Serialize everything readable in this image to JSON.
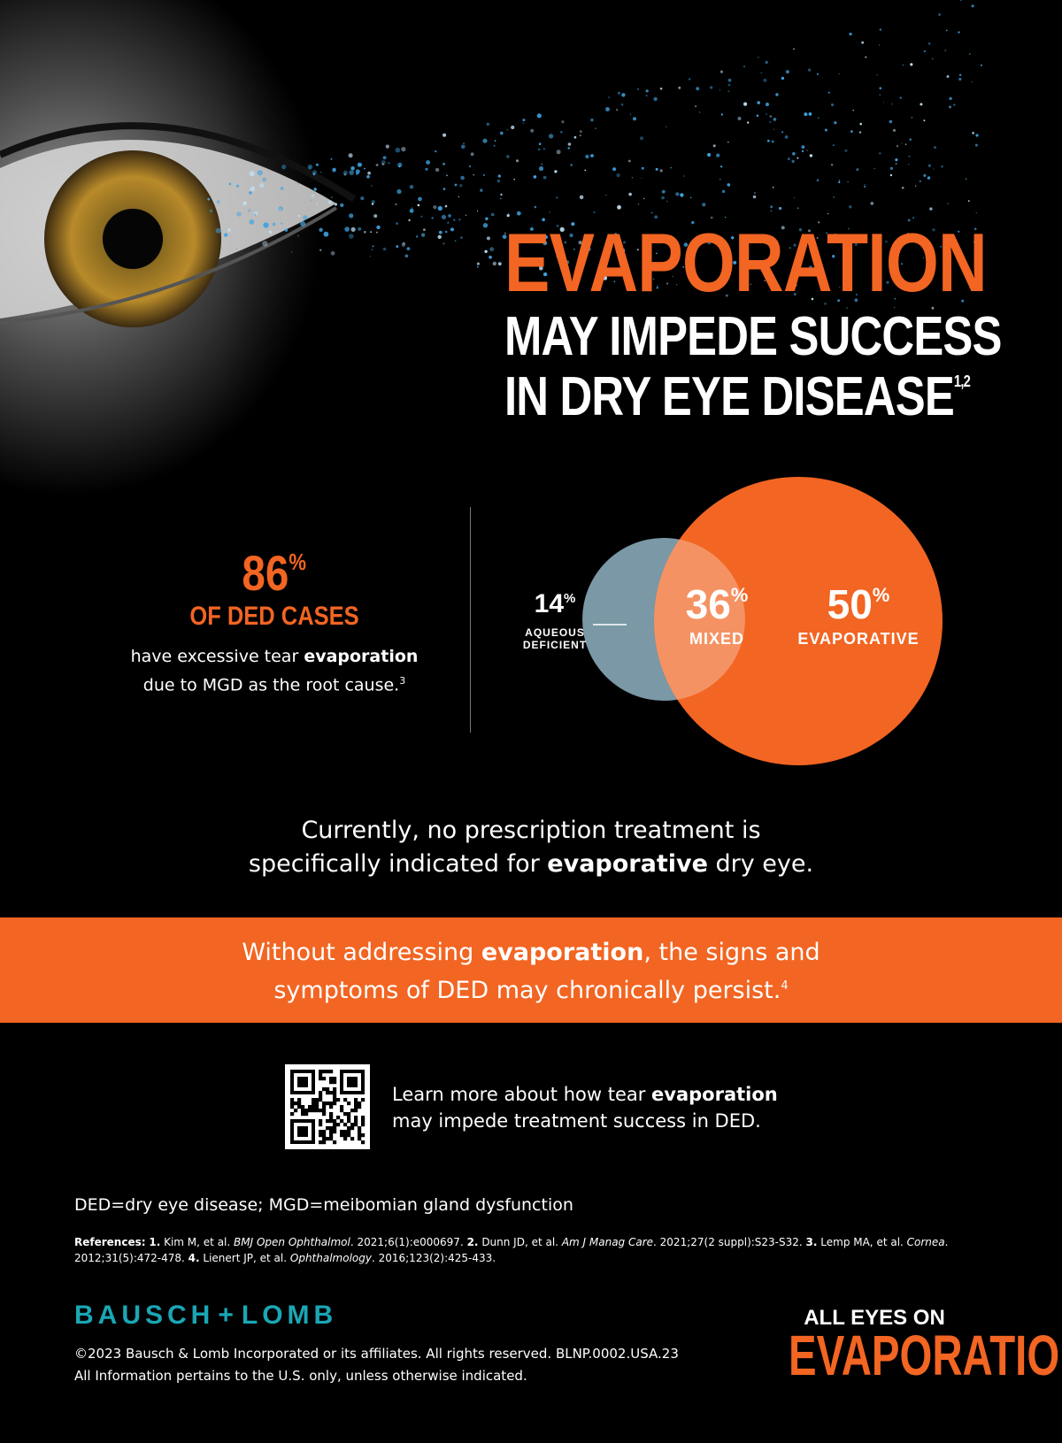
{
  "headline": {
    "title": "EVAPORATION",
    "line1": "MAY IMPEDE SUCCESS",
    "line2": "IN DRY EYE DISEASE",
    "line2_sup": "1,2"
  },
  "stat": {
    "value": "86",
    "unit": "%",
    "label": "OF DED CASES",
    "desc_pre": "have excessive tear ",
    "desc_bold": "evaporation",
    "desc_post": "due to MGD as the root cause.",
    "desc_sup": "3"
  },
  "venn": {
    "aqueous": {
      "value": "14",
      "unit": "%",
      "line1": "AQUEOUS",
      "line2": "DEFICIENT"
    },
    "mixed": {
      "value": "36",
      "unit": "%",
      "name": "MIXED"
    },
    "evaporative": {
      "value": "50",
      "unit": "%",
      "name": "EVAPORATIVE"
    },
    "colors": {
      "orange": "#f26522",
      "blue": "#7a98a6",
      "overlap": "#f5a27a"
    }
  },
  "statement": {
    "line1": "Currently, no prescription treatment is",
    "line2_pre": "specifically indicated for ",
    "line2_bold": "evaporative",
    "line2_post": " dry eye."
  },
  "band": {
    "line1_pre": "Without addressing ",
    "line1_bold": "evaporation",
    "line1_post": ", the signs and",
    "line2": "symptoms of DED may chronically persist.",
    "sup": "4",
    "color": "#f26522"
  },
  "learn": {
    "line1_pre": "Learn more about how tear ",
    "line1_bold": "evaporation",
    "line2": "may impede treatment success in DED.",
    "qr_icon": "qr-code-icon"
  },
  "abbrev": "DED=dry eye disease; MGD=meibomian gland dysfunction",
  "references": {
    "label": "References:",
    "r1_num": "1.",
    "r1_pre": " Kim M, et al. ",
    "r1_journal": "BMJ Open Ophthalmol",
    "r1_post": ". 2021;6(1):e000697. ",
    "r2_num": "2.",
    "r2_pre": " Dunn JD, et al. ",
    "r2_journal": "Am J Manag Care",
    "r2_post": ". 2021;27(2 suppl):S23-S32. ",
    "r3_num": "3.",
    "r3_pre": " Lemp MA, et al. ",
    "r3_journal": "Cornea",
    "r3_post": ". 2012;31(5):472-478. ",
    "r4_num": "4.",
    "r4_pre": " Lienert JP, et al. ",
    "r4_journal": "Ophthalmology",
    "r4_post": ". 2016;123(2):425-433."
  },
  "brand": {
    "left": "BAUSCH",
    "right": "LOMB",
    "color": "#1aa7b5"
  },
  "copyright": {
    "line1": "©2023 Bausch & Lomb Incorporated or its affiliates. All rights reserved. BLNP.0002.USA.23",
    "line2": "All Information pertains to the U.S. only, unless otherwise indicated."
  },
  "campaign": {
    "top": "ALL EYES ON",
    "bottom": "EVAPORATION"
  }
}
